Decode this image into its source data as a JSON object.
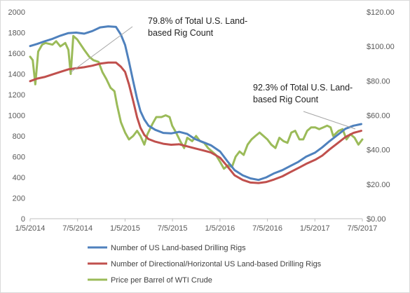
{
  "chart_data": {
    "type": "line",
    "title": "",
    "xlabel": "",
    "ylabel": "",
    "y2label": "",
    "grid": false,
    "legend_position": "bottom",
    "x_range": [
      "2014-01-05",
      "2017-07-05"
    ],
    "x_ticks": [
      "1/5/2014",
      "7/5/2014",
      "1/5/2015",
      "7/5/2015",
      "1/5/2016",
      "7/5/2016",
      "1/5/2017",
      "7/5/2017"
    ],
    "ylim": [
      0,
      2000
    ],
    "y_ticks": [
      "0",
      "200",
      "400",
      "600",
      "800",
      "1000",
      "1200",
      "1400",
      "1600",
      "1800",
      "2000"
    ],
    "y2lim": [
      0,
      120
    ],
    "y2_ticks": [
      "$0.00",
      "$20.00",
      "$40.00",
      "$60.00",
      "$80.00",
      "$100.00",
      "$120.00"
    ],
    "series": [
      {
        "name": "Number of US Land-based Drilling Rigs",
        "axis": "left",
        "color": "#4f81bd",
        "points": [
          [
            "2014-01-05",
            1670
          ],
          [
            "2014-02-01",
            1690
          ],
          [
            "2014-03-01",
            1715
          ],
          [
            "2014-04-01",
            1740
          ],
          [
            "2014-05-01",
            1770
          ],
          [
            "2014-06-01",
            1795
          ],
          [
            "2014-07-01",
            1800
          ],
          [
            "2014-08-01",
            1790
          ],
          [
            "2014-09-01",
            1815
          ],
          [
            "2014-10-01",
            1850
          ],
          [
            "2014-11-01",
            1860
          ],
          [
            "2014-12-01",
            1855
          ],
          [
            "2014-12-20",
            1780
          ],
          [
            "2015-01-05",
            1680
          ],
          [
            "2015-01-20",
            1520
          ],
          [
            "2015-02-05",
            1330
          ],
          [
            "2015-02-20",
            1160
          ],
          [
            "2015-03-05",
            1040
          ],
          [
            "2015-03-20",
            960
          ],
          [
            "2015-04-05",
            900
          ],
          [
            "2015-05-01",
            860
          ],
          [
            "2015-06-01",
            830
          ],
          [
            "2015-07-01",
            825
          ],
          [
            "2015-08-01",
            840
          ],
          [
            "2015-09-01",
            820
          ],
          [
            "2015-10-01",
            770
          ],
          [
            "2015-11-01",
            740
          ],
          [
            "2015-12-01",
            710
          ],
          [
            "2016-01-05",
            650
          ],
          [
            "2016-02-01",
            560
          ],
          [
            "2016-03-01",
            470
          ],
          [
            "2016-04-01",
            420
          ],
          [
            "2016-05-01",
            390
          ],
          [
            "2016-06-01",
            375
          ],
          [
            "2016-07-01",
            400
          ],
          [
            "2016-08-01",
            440
          ],
          [
            "2016-09-01",
            470
          ],
          [
            "2016-10-01",
            510
          ],
          [
            "2016-11-01",
            550
          ],
          [
            "2016-12-01",
            600
          ],
          [
            "2017-01-05",
            640
          ],
          [
            "2017-02-01",
            690
          ],
          [
            "2017-03-01",
            750
          ],
          [
            "2017-04-01",
            810
          ],
          [
            "2017-05-01",
            870
          ],
          [
            "2017-06-01",
            900
          ],
          [
            "2017-07-01",
            915
          ]
        ]
      },
      {
        "name": "Number of Directional/Horizontal US Land-based Drilling Rigs",
        "axis": "left",
        "color": "#c0504d",
        "points": [
          [
            "2014-01-05",
            1330
          ],
          [
            "2014-02-01",
            1355
          ],
          [
            "2014-03-01",
            1370
          ],
          [
            "2014-04-01",
            1395
          ],
          [
            "2014-05-01",
            1420
          ],
          [
            "2014-06-01",
            1445
          ],
          [
            "2014-07-01",
            1455
          ],
          [
            "2014-08-01",
            1465
          ],
          [
            "2014-09-01",
            1480
          ],
          [
            "2014-10-01",
            1500
          ],
          [
            "2014-11-01",
            1510
          ],
          [
            "2014-12-01",
            1510
          ],
          [
            "2014-12-20",
            1470
          ],
          [
            "2015-01-05",
            1420
          ],
          [
            "2015-01-20",
            1300
          ],
          [
            "2015-02-05",
            1140
          ],
          [
            "2015-02-20",
            980
          ],
          [
            "2015-03-05",
            880
          ],
          [
            "2015-03-20",
            810
          ],
          [
            "2015-04-05",
            770
          ],
          [
            "2015-05-01",
            745
          ],
          [
            "2015-06-01",
            725
          ],
          [
            "2015-07-01",
            715
          ],
          [
            "2015-08-01",
            720
          ],
          [
            "2015-09-01",
            700
          ],
          [
            "2015-10-01",
            680
          ],
          [
            "2015-11-01",
            660
          ],
          [
            "2015-12-01",
            640
          ],
          [
            "2016-01-05",
            590
          ],
          [
            "2016-02-01",
            510
          ],
          [
            "2016-03-01",
            420
          ],
          [
            "2016-04-01",
            375
          ],
          [
            "2016-05-01",
            350
          ],
          [
            "2016-06-01",
            345
          ],
          [
            "2016-07-01",
            355
          ],
          [
            "2016-08-01",
            380
          ],
          [
            "2016-09-01",
            410
          ],
          [
            "2016-10-01",
            450
          ],
          [
            "2016-11-01",
            490
          ],
          [
            "2016-12-01",
            530
          ],
          [
            "2017-01-05",
            570
          ],
          [
            "2017-02-01",
            610
          ],
          [
            "2017-03-01",
            670
          ],
          [
            "2017-04-01",
            730
          ],
          [
            "2017-05-01",
            790
          ],
          [
            "2017-06-01",
            830
          ],
          [
            "2017-07-01",
            850
          ]
        ]
      },
      {
        "name": "Price per Barrel of WTI Crude",
        "axis": "right",
        "color": "#9bbb59",
        "points": [
          [
            "2014-01-05",
            94
          ],
          [
            "2014-01-15",
            92
          ],
          [
            "2014-01-25",
            78
          ],
          [
            "2014-02-05",
            97
          ],
          [
            "2014-02-20",
            101
          ],
          [
            "2014-03-05",
            102
          ],
          [
            "2014-04-01",
            101
          ],
          [
            "2014-04-15",
            103
          ],
          [
            "2014-05-01",
            100
          ],
          [
            "2014-05-20",
            102
          ],
          [
            "2014-06-01",
            98
          ],
          [
            "2014-06-10",
            84
          ],
          [
            "2014-06-20",
            106
          ],
          [
            "2014-07-05",
            104
          ],
          [
            "2014-08-01",
            98
          ],
          [
            "2014-08-20",
            94
          ],
          [
            "2014-09-05",
            92
          ],
          [
            "2014-09-25",
            91
          ],
          [
            "2014-10-10",
            85
          ],
          [
            "2014-10-25",
            81
          ],
          [
            "2014-11-10",
            76
          ],
          [
            "2014-11-25",
            74
          ],
          [
            "2014-12-05",
            66
          ],
          [
            "2014-12-20",
            56
          ],
          [
            "2015-01-05",
            50
          ],
          [
            "2015-01-20",
            46
          ],
          [
            "2015-02-05",
            48
          ],
          [
            "2015-02-20",
            51
          ],
          [
            "2015-03-05",
            48
          ],
          [
            "2015-03-20",
            43
          ],
          [
            "2015-04-01",
            49
          ],
          [
            "2015-04-20",
            55
          ],
          [
            "2015-05-05",
            59
          ],
          [
            "2015-05-25",
            59
          ],
          [
            "2015-06-10",
            60
          ],
          [
            "2015-06-25",
            59
          ],
          [
            "2015-07-05",
            54
          ],
          [
            "2015-07-20",
            50
          ],
          [
            "2015-08-05",
            45
          ],
          [
            "2015-08-20",
            41
          ],
          [
            "2015-09-01",
            47
          ],
          [
            "2015-09-20",
            45
          ],
          [
            "2015-10-05",
            48
          ],
          [
            "2015-10-20",
            45
          ],
          [
            "2015-11-05",
            44
          ],
          [
            "2015-11-20",
            41
          ],
          [
            "2015-12-05",
            39
          ],
          [
            "2015-12-20",
            37
          ],
          [
            "2016-01-05",
            33
          ],
          [
            "2016-01-20",
            29
          ],
          [
            "2016-02-05",
            31
          ],
          [
            "2016-02-20",
            30
          ],
          [
            "2016-03-05",
            36
          ],
          [
            "2016-03-20",
            39
          ],
          [
            "2016-04-05",
            37
          ],
          [
            "2016-04-20",
            43
          ],
          [
            "2016-05-05",
            46
          ],
          [
            "2016-05-20",
            48
          ],
          [
            "2016-06-05",
            50
          ],
          [
            "2016-06-20",
            48
          ],
          [
            "2016-07-05",
            46
          ],
          [
            "2016-07-20",
            43
          ],
          [
            "2016-08-05",
            41
          ],
          [
            "2016-08-20",
            47
          ],
          [
            "2016-09-05",
            45
          ],
          [
            "2016-09-20",
            44
          ],
          [
            "2016-10-05",
            50
          ],
          [
            "2016-10-20",
            51
          ],
          [
            "2016-11-05",
            46
          ],
          [
            "2016-11-20",
            46
          ],
          [
            "2016-12-05",
            51
          ],
          [
            "2016-12-20",
            53
          ],
          [
            "2017-01-05",
            53
          ],
          [
            "2017-01-20",
            52
          ],
          [
            "2017-02-05",
            53
          ],
          [
            "2017-02-20",
            54
          ],
          [
            "2017-03-05",
            53
          ],
          [
            "2017-03-15",
            48
          ],
          [
            "2017-04-05",
            51
          ],
          [
            "2017-04-20",
            52
          ],
          [
            "2017-05-05",
            46
          ],
          [
            "2017-05-20",
            49
          ],
          [
            "2017-06-05",
            47
          ],
          [
            "2017-06-20",
            43
          ],
          [
            "2017-07-05",
            46
          ]
        ]
      }
    ],
    "annotations": [
      {
        "lines": [
          "79.8% of Total U.S. Land-",
          "based Rig Count"
        ],
        "target": [
          "2014-12-15",
          1860
        ]
      },
      {
        "lines": [
          "92.3% of Total U.S. Land-",
          "based Rig Count"
        ],
        "target": [
          "2017-06-10",
          900
        ]
      }
    ]
  }
}
